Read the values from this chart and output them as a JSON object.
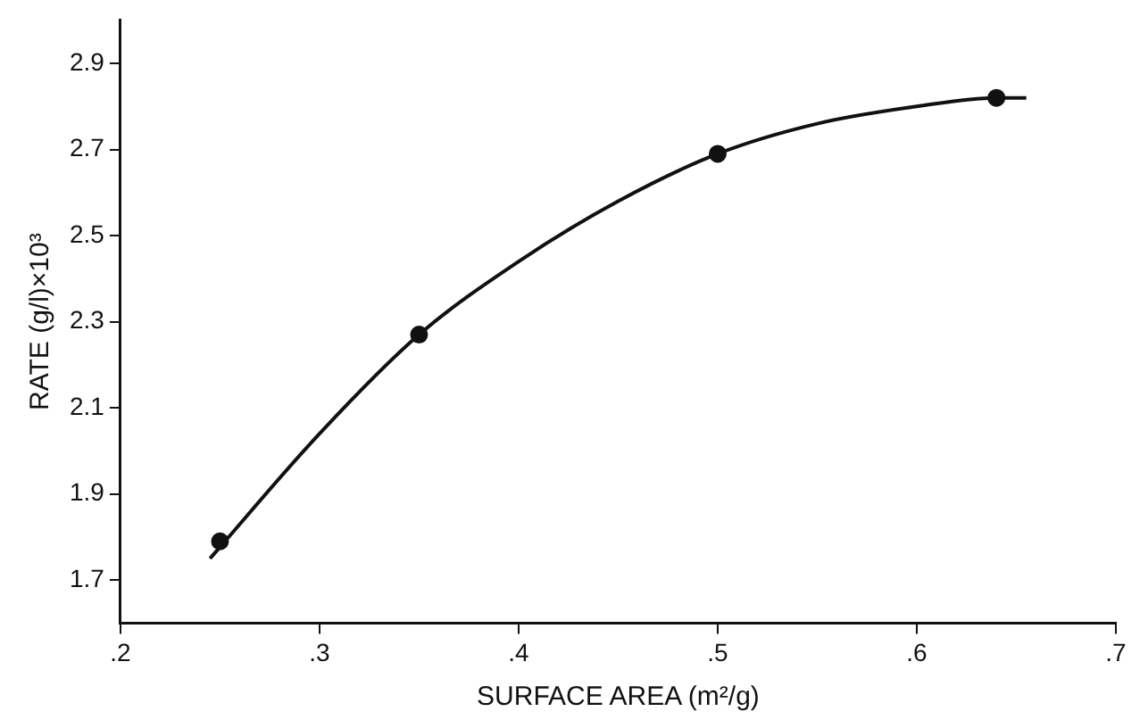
{
  "chart_data": {
    "type": "scatter",
    "xlabel": "SURFACE AREA (m²/g)",
    "ylabel": "RATE (g/l)×10³",
    "xlim": [
      0.2,
      0.7
    ],
    "ylim": [
      1.6,
      3.0
    ],
    "xticks": [
      {
        "value": 0.2,
        "label": ".2"
      },
      {
        "value": 0.3,
        "label": ".3"
      },
      {
        "value": 0.4,
        "label": ".4"
      },
      {
        "value": 0.5,
        "label": ".5"
      },
      {
        "value": 0.6,
        "label": ".6"
      },
      {
        "value": 0.7,
        "label": ".7"
      }
    ],
    "yticks": [
      1.7,
      1.9,
      2.1,
      2.3,
      2.5,
      2.7,
      2.9
    ],
    "grid": false,
    "legend": false,
    "series": [
      {
        "color": "#111111",
        "marker": "circle",
        "x": [
          0.25,
          0.35,
          0.5,
          0.64
        ],
        "values": [
          1.79,
          2.27,
          2.69,
          2.82
        ]
      },
      {
        "type": "line",
        "color": "#111111",
        "marker": "none",
        "line_style": "solid",
        "x": [
          0.245,
          0.3,
          0.35,
          0.4,
          0.45,
          0.5,
          0.55,
          0.6,
          0.64,
          0.655
        ],
        "values": [
          1.75,
          2.04,
          2.27,
          2.44,
          2.58,
          2.69,
          2.76,
          2.8,
          2.82,
          2.82
        ]
      }
    ]
  }
}
